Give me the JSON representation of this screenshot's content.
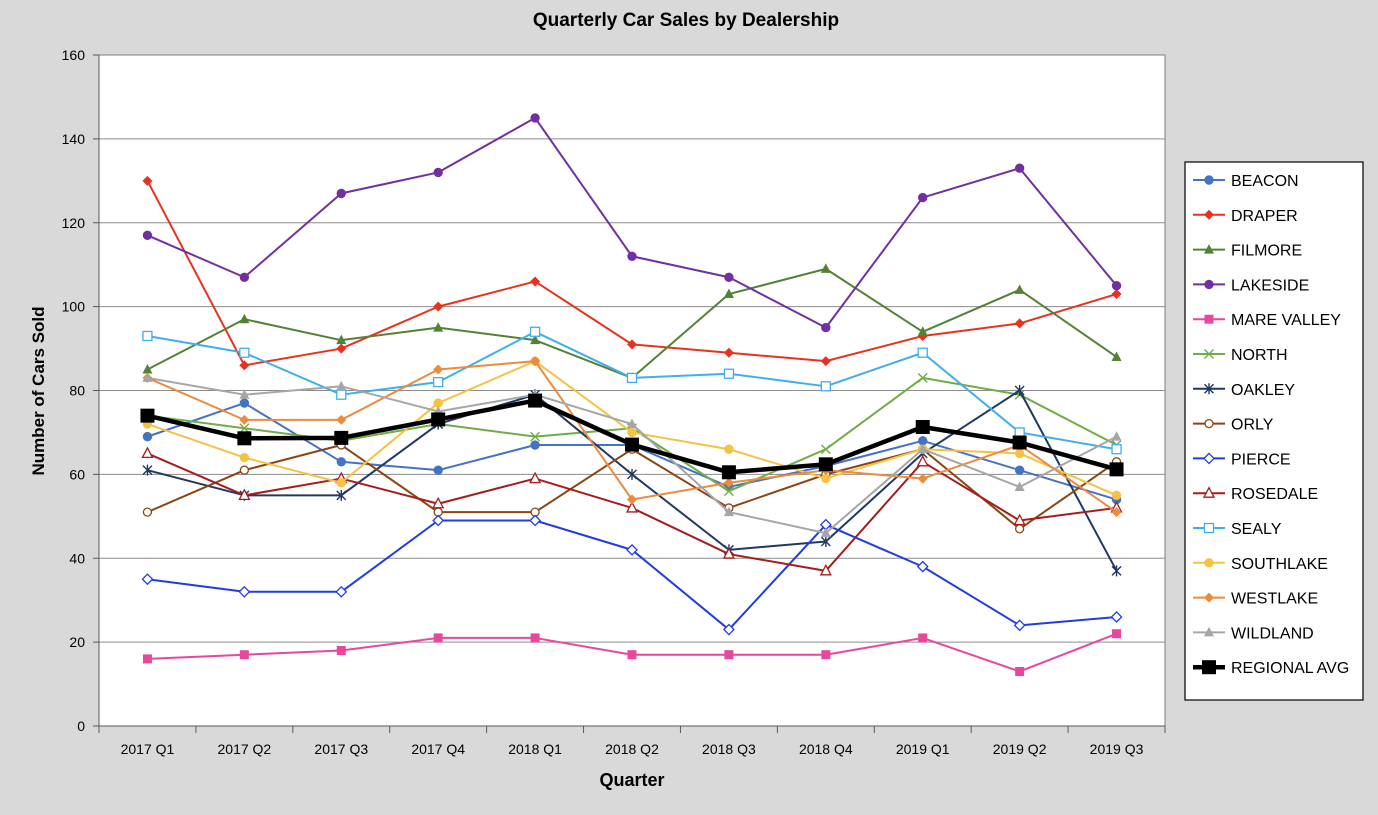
{
  "chart_data": {
    "type": "line",
    "title": "Quarterly Car Sales by Dealership",
    "xlabel": "Quarter",
    "ylabel": "Number of Cars Sold",
    "ylim": [
      0,
      160
    ],
    "yticks": [
      0,
      20,
      40,
      60,
      80,
      100,
      120,
      140,
      160
    ],
    "grid": true,
    "legend_position": "right",
    "categories": [
      "2017 Q1",
      "2017 Q2",
      "2017 Q3",
      "2017 Q4",
      "2018 Q1",
      "2018 Q2",
      "2018 Q3",
      "2018 Q4",
      "2019 Q1",
      "2019 Q2",
      "2019 Q3"
    ],
    "series": [
      {
        "name": "BEACON",
        "color": "#4472c4",
        "marker": "circle-filled",
        "values": [
          69,
          77,
          63,
          61,
          67,
          67,
          57,
          62,
          68,
          61,
          54
        ]
      },
      {
        "name": "DRAPER",
        "color": "#e8321e",
        "marker": "diamond-filled",
        "values": [
          130,
          86,
          90,
          100,
          106,
          91,
          89,
          87,
          93,
          96,
          103
        ]
      },
      {
        "name": "FILMORE",
        "color": "#548235",
        "marker": "triangle-filled",
        "values": [
          85,
          97,
          92,
          95,
          92,
          83,
          103,
          109,
          94,
          104,
          88
        ]
      },
      {
        "name": "LAKESIDE",
        "color": "#7030a0",
        "marker": "circle-filled",
        "values": [
          117,
          107,
          127,
          132,
          145,
          112,
          107,
          95,
          126,
          133,
          105
        ]
      },
      {
        "name": "MARE VALLEY",
        "color": "#e8479d",
        "marker": "square-filled",
        "values": [
          16,
          17,
          18,
          21,
          21,
          17,
          17,
          17,
          21,
          13,
          22
        ]
      },
      {
        "name": "NORTH",
        "color": "#70ad47",
        "marker": "x",
        "values": [
          74,
          71,
          68,
          72,
          69,
          71,
          56,
          66,
          83,
          79,
          67
        ]
      },
      {
        "name": "OAKLEY",
        "color": "#203864",
        "marker": "star",
        "values": [
          61,
          55,
          55,
          72,
          79,
          60,
          42,
          44,
          65,
          80,
          37
        ]
      },
      {
        "name": "ORLY",
        "color": "#8b4513",
        "marker": "circle-open",
        "values": [
          51,
          61,
          67,
          51,
          51,
          66,
          52,
          60,
          66,
          47,
          63
        ]
      },
      {
        "name": "PIERCE",
        "color": "#1f3de0",
        "marker": "diamond-open",
        "values": [
          35,
          32,
          32,
          49,
          49,
          42,
          23,
          48,
          38,
          24,
          26
        ]
      },
      {
        "name": "ROSEDALE",
        "color": "#a61c1c",
        "marker": "triangle-open",
        "values": [
          65,
          55,
          59,
          53,
          59,
          52,
          41,
          37,
          63,
          49,
          52
        ]
      },
      {
        "name": "SEALY",
        "color": "#41aee8",
        "marker": "square-open",
        "values": [
          93,
          89,
          79,
          82,
          94,
          83,
          84,
          81,
          89,
          70,
          66
        ]
      },
      {
        "name": "SOUTHLAKE",
        "color": "#f6c243",
        "marker": "circle-filled",
        "values": [
          72,
          64,
          58,
          77,
          87,
          70,
          66,
          59,
          66,
          65,
          55
        ]
      },
      {
        "name": "WESTLAKE",
        "color": "#ed8a3c",
        "marker": "diamond-filled",
        "values": [
          83,
          73,
          73,
          85,
          87,
          54,
          58,
          61,
          59,
          67,
          51
        ]
      },
      {
        "name": "WILDLAND",
        "color": "#a6a6a6",
        "marker": "triangle-filled",
        "values": [
          83,
          79,
          81,
          75,
          79,
          72,
          51,
          46,
          66,
          57,
          69
        ]
      },
      {
        "name": "REGIONAL AVG",
        "color": "#000000",
        "marker": "square-filled-large",
        "values": [
          74,
          68.6,
          68.7,
          73.1,
          77.6,
          67.1,
          60.5,
          62.4,
          71.3,
          67.6,
          61.2
        ]
      }
    ]
  }
}
